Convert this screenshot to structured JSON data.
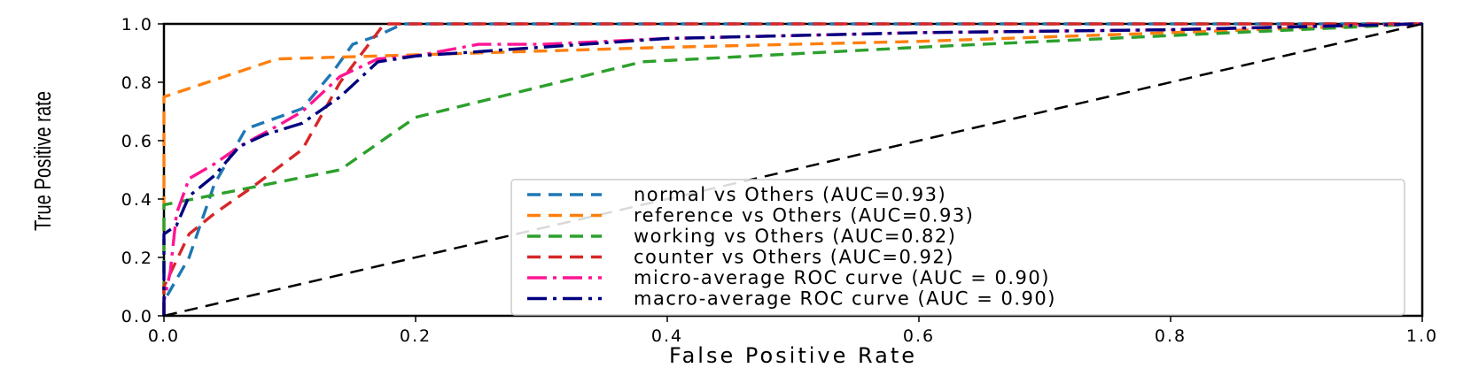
{
  "chart_data": {
    "type": "line",
    "title": "",
    "xlabel": "False Positive Rate",
    "ylabel": "True Positive rate",
    "xlim": [
      0.0,
      1.0
    ],
    "ylim": [
      0.0,
      1.0
    ],
    "xticks": [
      "0.0",
      "0.2",
      "0.4",
      "0.6",
      "0.8",
      "1.0"
    ],
    "yticks": [
      "0.0",
      "0.2",
      "0.4",
      "0.6",
      "0.8",
      "1.0"
    ],
    "grid": false,
    "legend_position": "lower-right",
    "series": [
      {
        "name": "normal vs Others (AUC=0.93)",
        "color": "#1f77b4",
        "style": "dashed",
        "x": [
          0.0,
          0.0,
          0.02,
          0.04,
          0.065,
          0.11,
          0.135,
          0.15,
          0.17,
          0.19,
          1.0
        ],
        "y": [
          0.0,
          0.05,
          0.2,
          0.45,
          0.64,
          0.71,
          0.84,
          0.93,
          0.96,
          1.0,
          1.0
        ]
      },
      {
        "name": "reference vs Others (AUC=0.93)",
        "color": "#ff7f0e",
        "style": "dashed",
        "x": [
          0.0,
          0.0,
          0.0,
          0.09,
          0.17,
          0.4,
          0.6,
          0.8,
          1.0
        ],
        "y": [
          0.0,
          0.5,
          0.75,
          0.88,
          0.89,
          0.92,
          0.94,
          0.97,
          1.0
        ]
      },
      {
        "name": "working vs Others (AUC=0.82)",
        "color": "#2ca02c",
        "style": "dashed",
        "x": [
          0.0,
          0.0,
          0.0,
          0.14,
          0.2,
          0.38,
          0.6,
          0.8,
          1.0
        ],
        "y": [
          0.0,
          0.28,
          0.38,
          0.5,
          0.68,
          0.87,
          0.92,
          0.96,
          1.0
        ]
      },
      {
        "name": "counter vs Others (AUC=0.92)",
        "color": "#d62728",
        "style": "dashed",
        "x": [
          0.0,
          0.0,
          0.02,
          0.04,
          0.07,
          0.11,
          0.14,
          0.175,
          1.0
        ],
        "y": [
          0.0,
          0.1,
          0.28,
          0.35,
          0.44,
          0.57,
          0.8,
          1.0,
          1.0
        ]
      },
      {
        "name": "micro-average ROC curve (AUC = 0.90)",
        "color": "#ff1493",
        "style": "dashdot",
        "x": [
          0.0,
          0.0,
          0.005,
          0.01,
          0.02,
          0.04,
          0.06,
          0.09,
          0.11,
          0.14,
          0.17,
          0.2,
          0.25,
          0.3,
          0.4,
          0.6,
          0.8,
          1.0
        ],
        "y": [
          0.0,
          0.05,
          0.15,
          0.35,
          0.47,
          0.52,
          0.58,
          0.65,
          0.7,
          0.82,
          0.88,
          0.89,
          0.93,
          0.93,
          0.95,
          0.97,
          0.98,
          1.0
        ]
      },
      {
        "name": "macro-average ROC curve (AUC = 0.90)",
        "color": "#000080",
        "style": "dashdot",
        "x": [
          0.0,
          0.0,
          0.01,
          0.02,
          0.04,
          0.06,
          0.08,
          0.11,
          0.14,
          0.17,
          0.2,
          0.3,
          0.4,
          0.6,
          0.8,
          1.0
        ],
        "y": [
          0.0,
          0.28,
          0.31,
          0.41,
          0.48,
          0.58,
          0.62,
          0.66,
          0.75,
          0.87,
          0.89,
          0.92,
          0.95,
          0.97,
          0.98,
          1.0
        ]
      },
      {
        "name": "",
        "color": "#000000",
        "style": "dashed",
        "x": [
          0.0,
          1.0
        ],
        "y": [
          0.0,
          1.0
        ]
      }
    ]
  }
}
